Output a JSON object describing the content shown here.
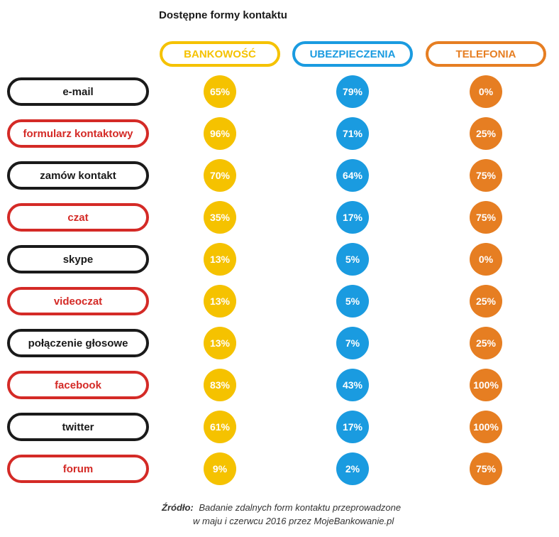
{
  "chart_data": {
    "type": "table",
    "title": "Dostępne formy kontaktu",
    "columns": [
      {
        "name": "BANKOWOŚĆ",
        "color": "#f5c200"
      },
      {
        "name": "UBEZPIECZENIA",
        "color": "#1a9be0"
      },
      {
        "name": "TELEFONIA",
        "color": "#e67e22"
      }
    ],
    "rows": [
      {
        "label": "e-mail",
        "label_color": "#1a1a1a",
        "values": [
          "65%",
          "79%",
          "0%"
        ]
      },
      {
        "label": "formularz kontaktowy",
        "label_color": "#d42a26",
        "values": [
          "96%",
          "71%",
          "25%"
        ]
      },
      {
        "label": "zamów kontakt",
        "label_color": "#1a1a1a",
        "values": [
          "70%",
          "64%",
          "75%"
        ]
      },
      {
        "label": "czat",
        "label_color": "#d42a26",
        "values": [
          "35%",
          "17%",
          "75%"
        ]
      },
      {
        "label": "skype",
        "label_color": "#1a1a1a",
        "values": [
          "13%",
          "5%",
          "0%"
        ]
      },
      {
        "label": "videoczat",
        "label_color": "#d42a26",
        "values": [
          "13%",
          "5%",
          "25%"
        ]
      },
      {
        "label": "połączenie głosowe",
        "label_color": "#1a1a1a",
        "values": [
          "13%",
          "7%",
          "25%"
        ]
      },
      {
        "label": "facebook",
        "label_color": "#d42a26",
        "values": [
          "83%",
          "43%",
          "100%"
        ]
      },
      {
        "label": "twitter",
        "label_color": "#1a1a1a",
        "values": [
          "61%",
          "17%",
          "100%"
        ]
      },
      {
        "label": "forum",
        "label_color": "#d42a26",
        "values": [
          "9%",
          "2%",
          "75%"
        ]
      }
    ]
  },
  "source": {
    "label": "Źródło:",
    "line1": "Badanie zdalnych form kontaktu przeprowadzone",
    "line2": "w maju i czerwcu 2016 przez MojeBankowanie.pl"
  }
}
